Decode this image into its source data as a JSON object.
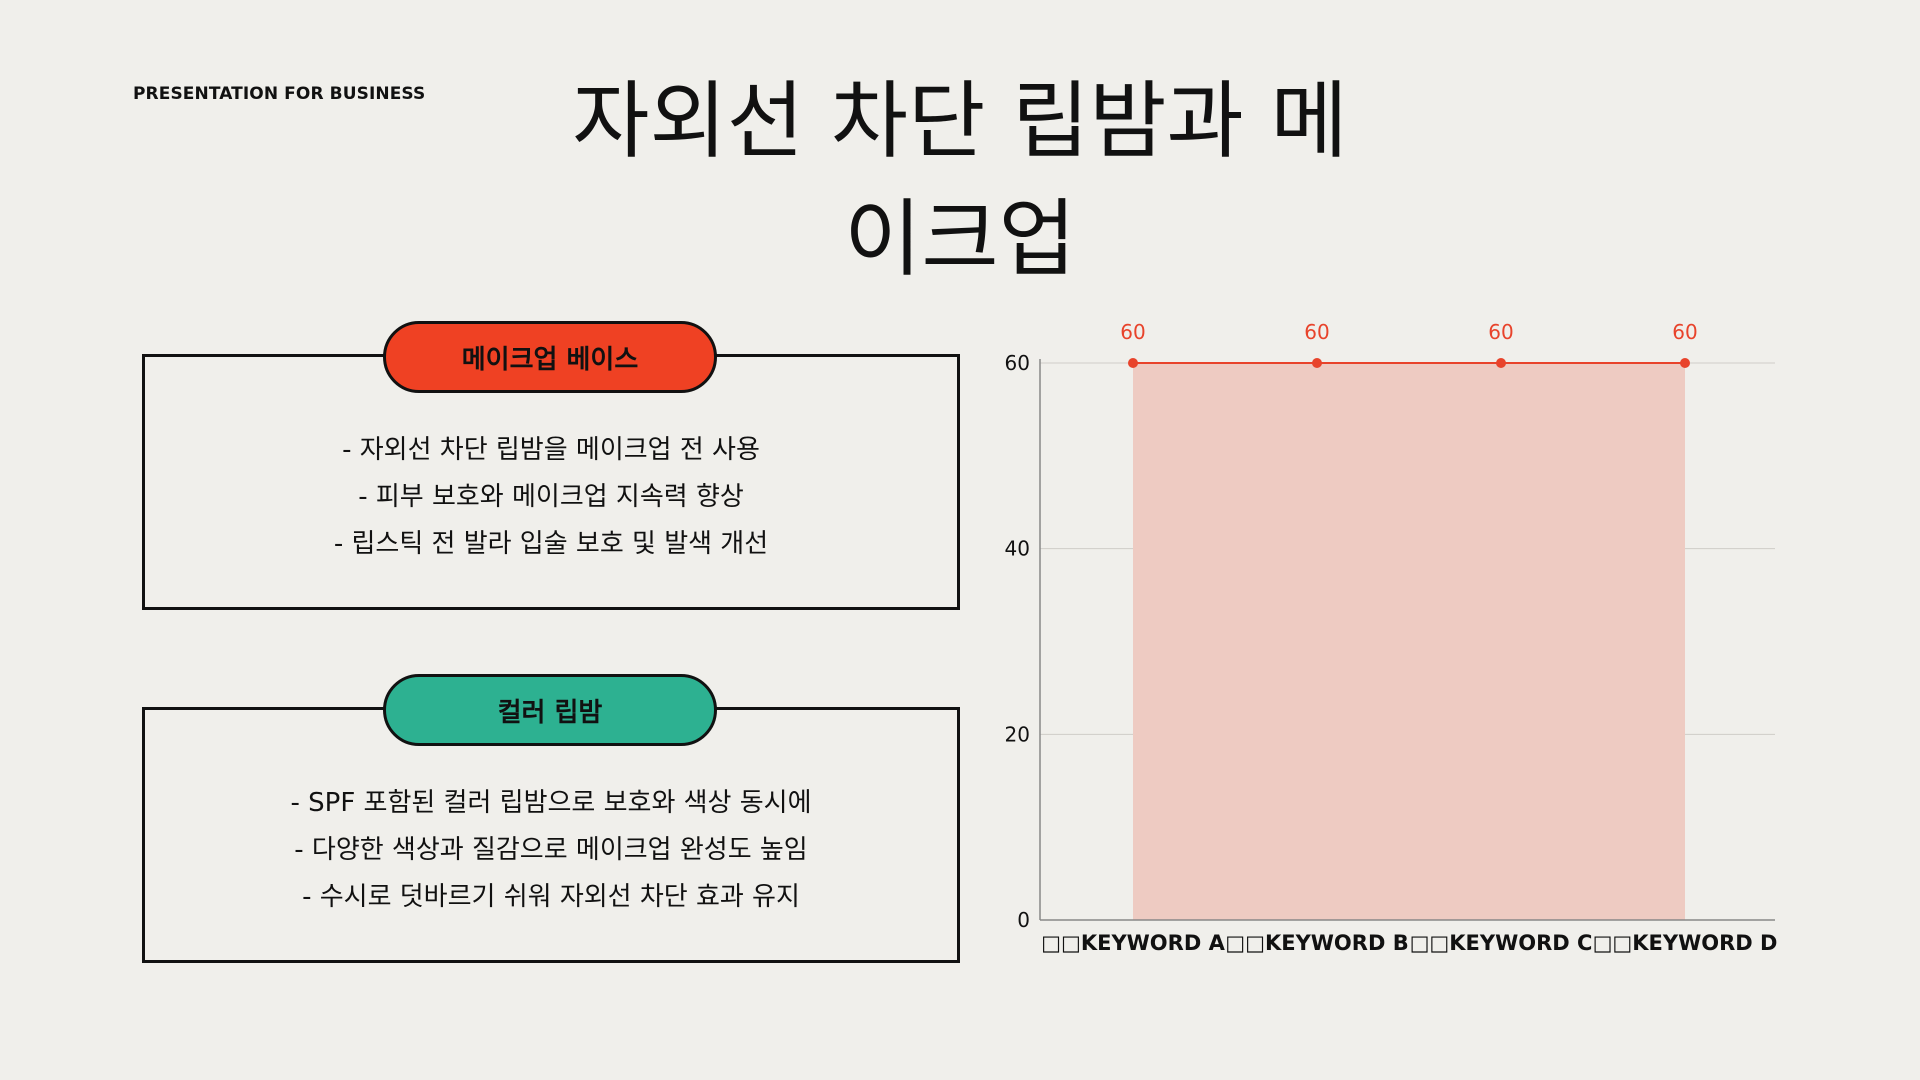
{
  "brand": "PRESENTATION FOR BUSINESS",
  "title_line1": "자외선 차단 립밤과 메",
  "title_line2": "이크업",
  "cards": [
    {
      "label": "메이크업 베이스",
      "color": "#ef4123",
      "lines": [
        "- 자외선 차단 립밤을 메이크업 전 사용",
        "- 피부 보호와 메이크업 지속력 향상",
        "- 립스틱 전 발라 입술 보호 및 발색 개선"
      ]
    },
    {
      "label": "컬러 립밤",
      "color": "#2db191",
      "lines": [
        "- SPF 포함된 컬러 립밤으로 보호와 색상 동시에",
        "- 다양한 색상과 질감으로 메이크업 완성도 높임",
        "- 수시로 덧바르기 쉬워 자외선 차단 효과 유지"
      ]
    }
  ],
  "chart_data": {
    "type": "area",
    "categories": [
      "KEYWORD A",
      "KEYWORD B",
      "KEYWORD C",
      "KEYWORD D"
    ],
    "category_prefix": "□□",
    "series": [
      {
        "values": [
          60,
          60,
          60,
          60
        ]
      }
    ],
    "ylim": [
      0,
      60
    ],
    "yticks": [
      0,
      20,
      40,
      60
    ],
    "grid": true,
    "data_labels": true,
    "line_color": "#e8432b",
    "fill_color": "#eecbc2",
    "title": "",
    "xlabel": "",
    "ylabel": ""
  }
}
